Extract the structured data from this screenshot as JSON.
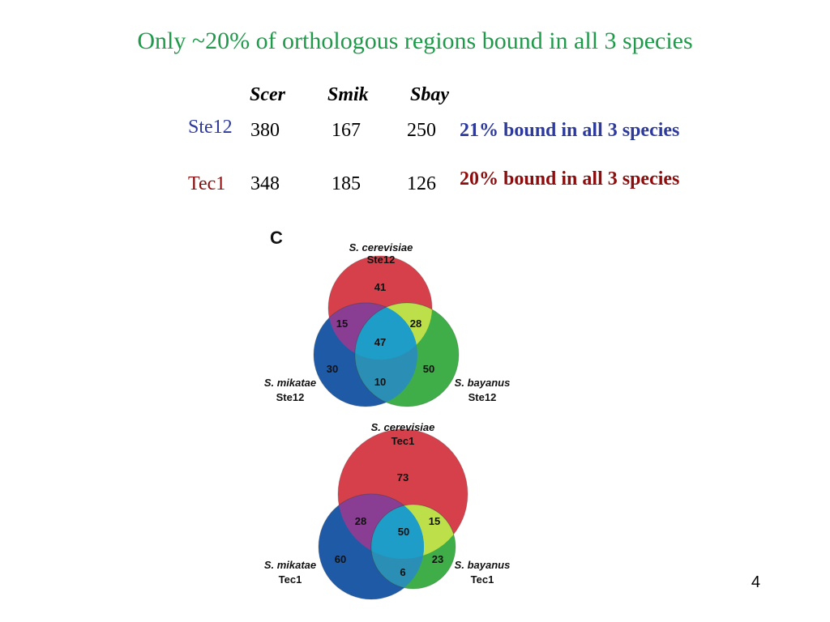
{
  "title": "Only ~20% of orthologous regions bound in all 3 species",
  "table": {
    "headers": [
      "Scer",
      "Smik",
      "Sbay"
    ],
    "rows": [
      {
        "label": "Ste12",
        "label_color": "#2d3a9c",
        "values": [
          "380",
          "167",
          "250"
        ],
        "summary_pct": "21%",
        "summary_text": "bound in all 3 species",
        "summary_color": "#2d3a9c"
      },
      {
        "label": "Tec1",
        "label_color": "#8b0d0d",
        "values": [
          "348",
          "185",
          "126"
        ],
        "summary_pct": "20%",
        "summary_text": "bound in all 3 species",
        "summary_color": "#8b0d0d"
      }
    ]
  },
  "figure": {
    "panel_letter": "C",
    "venns": [
      {
        "top": {
          "species": "S. cerevisiae",
          "factor": "Ste12"
        },
        "left": {
          "species": "S. mikatae",
          "factor": "Ste12"
        },
        "right": {
          "species": "S. bayanus",
          "factor": "Ste12"
        },
        "counts": {
          "top_only": "41",
          "top_left": "15",
          "top_right": "28",
          "all": "47",
          "left_only": "30",
          "left_right": "10",
          "right_only": "50"
        }
      },
      {
        "top": {
          "species": "S. cerevisiae",
          "factor": "Tec1"
        },
        "left": {
          "species": "S. mikatae",
          "factor": "Tec1"
        },
        "right": {
          "species": "S. bayanus",
          "factor": "Tec1"
        },
        "counts": {
          "top_only": "73",
          "top_left": "28",
          "top_right": "15",
          "all": "50",
          "left_only": "60",
          "left_right": "6",
          "right_only": "23"
        }
      }
    ],
    "colors": {
      "red": "#d6404b",
      "blue": "#1f5aa6",
      "green": "#3fae49",
      "purple": "#8a3e93",
      "yellowgreen": "#bde04a",
      "cyan": "#1e9dc9",
      "teal": "#2b8fb5"
    }
  },
  "page_number": "4"
}
